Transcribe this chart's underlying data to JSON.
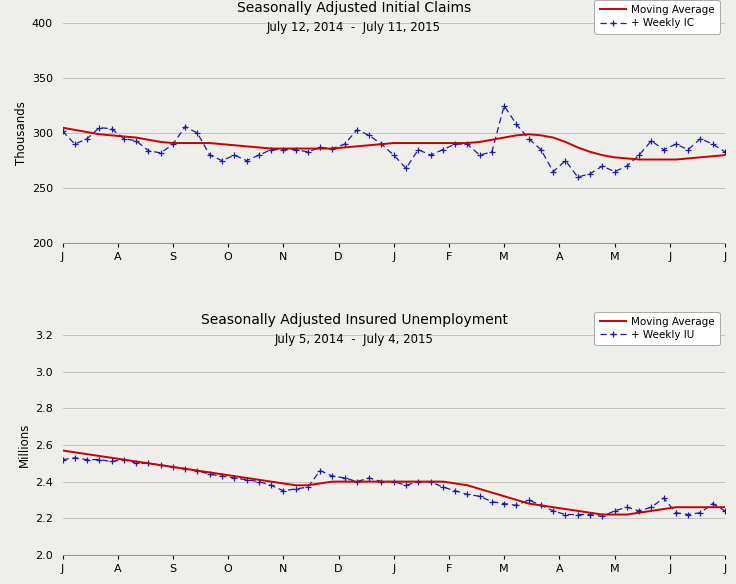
{
  "chart1": {
    "title": "Seasonally Adjusted Initial Claims",
    "subtitle": "July 12, 2014  -  July 11, 2015",
    "ylabel": "Thousands",
    "ylim": [
      200,
      400
    ],
    "yticks": [
      200,
      250,
      300,
      350,
      400
    ],
    "x_labels": [
      "J",
      "A",
      "S",
      "O",
      "N",
      "D",
      "J",
      "F",
      "M",
      "A",
      "M",
      "J",
      "J"
    ],
    "weekly": [
      302,
      290,
      295,
      305,
      304,
      295,
      293,
      284,
      282,
      290,
      306,
      300,
      280,
      275,
      280,
      275,
      280,
      285,
      285,
      285,
      283,
      287,
      286,
      290,
      303,
      298,
      290,
      280,
      268,
      285,
      280,
      285,
      290,
      290,
      280,
      283,
      325,
      308,
      295,
      285,
      265,
      275,
      260,
      263,
      270,
      265,
      270,
      280,
      293,
      285,
      290,
      285,
      295,
      290,
      283
    ],
    "moving_avg": [
      305,
      303,
      301,
      299,
      298,
      297,
      296,
      294,
      292,
      291,
      291,
      291,
      291,
      290,
      289,
      288,
      287,
      286,
      286,
      286,
      286,
      286,
      286,
      287,
      288,
      289,
      290,
      291,
      291,
      291,
      291,
      291,
      291,
      291,
      292,
      294,
      296,
      298,
      299,
      298,
      296,
      292,
      287,
      283,
      280,
      278,
      277,
      276,
      276,
      276,
      276,
      277,
      278,
      279,
      280
    ],
    "line_color": "#cc0000",
    "weekly_color": "#1a1aaa",
    "legend_ma": "Moving Average",
    "legend_weekly": "+ Weekly IC"
  },
  "chart2": {
    "title": "Seasonally Adjusted Insured Unemployment",
    "subtitle": "July 5, 2014  -  July 4, 2015",
    "ylabel": "Millions",
    "ylim": [
      2.0,
      3.2
    ],
    "yticks": [
      2.0,
      2.2,
      2.4,
      2.6,
      2.8,
      3.0,
      3.2
    ],
    "x_labels": [
      "J",
      "A",
      "S",
      "O",
      "N",
      "D",
      "J",
      "F",
      "M",
      "A",
      "M",
      "J",
      "J"
    ],
    "weekly": [
      2.52,
      2.53,
      2.52,
      2.52,
      2.51,
      2.52,
      2.5,
      2.5,
      2.49,
      2.48,
      2.47,
      2.46,
      2.44,
      2.43,
      2.42,
      2.41,
      2.4,
      2.38,
      2.35,
      2.36,
      2.37,
      2.46,
      2.43,
      2.42,
      2.4,
      2.42,
      2.4,
      2.4,
      2.38,
      2.4,
      2.4,
      2.37,
      2.35,
      2.33,
      2.32,
      2.29,
      2.28,
      2.27,
      2.3,
      2.27,
      2.24,
      2.22,
      2.22,
      2.22,
      2.21,
      2.24,
      2.26,
      2.24,
      2.26,
      2.31,
      2.23,
      2.22,
      2.23,
      2.28,
      2.24
    ],
    "moving_avg": [
      2.57,
      2.56,
      2.55,
      2.54,
      2.53,
      2.52,
      2.51,
      2.5,
      2.49,
      2.48,
      2.47,
      2.46,
      2.45,
      2.44,
      2.43,
      2.42,
      2.41,
      2.4,
      2.39,
      2.38,
      2.38,
      2.39,
      2.4,
      2.4,
      2.4,
      2.4,
      2.4,
      2.4,
      2.4,
      2.4,
      2.4,
      2.4,
      2.39,
      2.38,
      2.36,
      2.34,
      2.32,
      2.3,
      2.28,
      2.27,
      2.26,
      2.25,
      2.24,
      2.23,
      2.22,
      2.22,
      2.22,
      2.23,
      2.24,
      2.25,
      2.26,
      2.26,
      2.26,
      2.26,
      2.26
    ],
    "line_color": "#cc0000",
    "weekly_color": "#1a1aaa",
    "legend_ma": "Moving Average",
    "legend_weekly": "+ Weekly IU"
  },
  "figure_bg": "#eeeeea",
  "grid_color": "#bbbbbb",
  "spine_color": "#999999"
}
